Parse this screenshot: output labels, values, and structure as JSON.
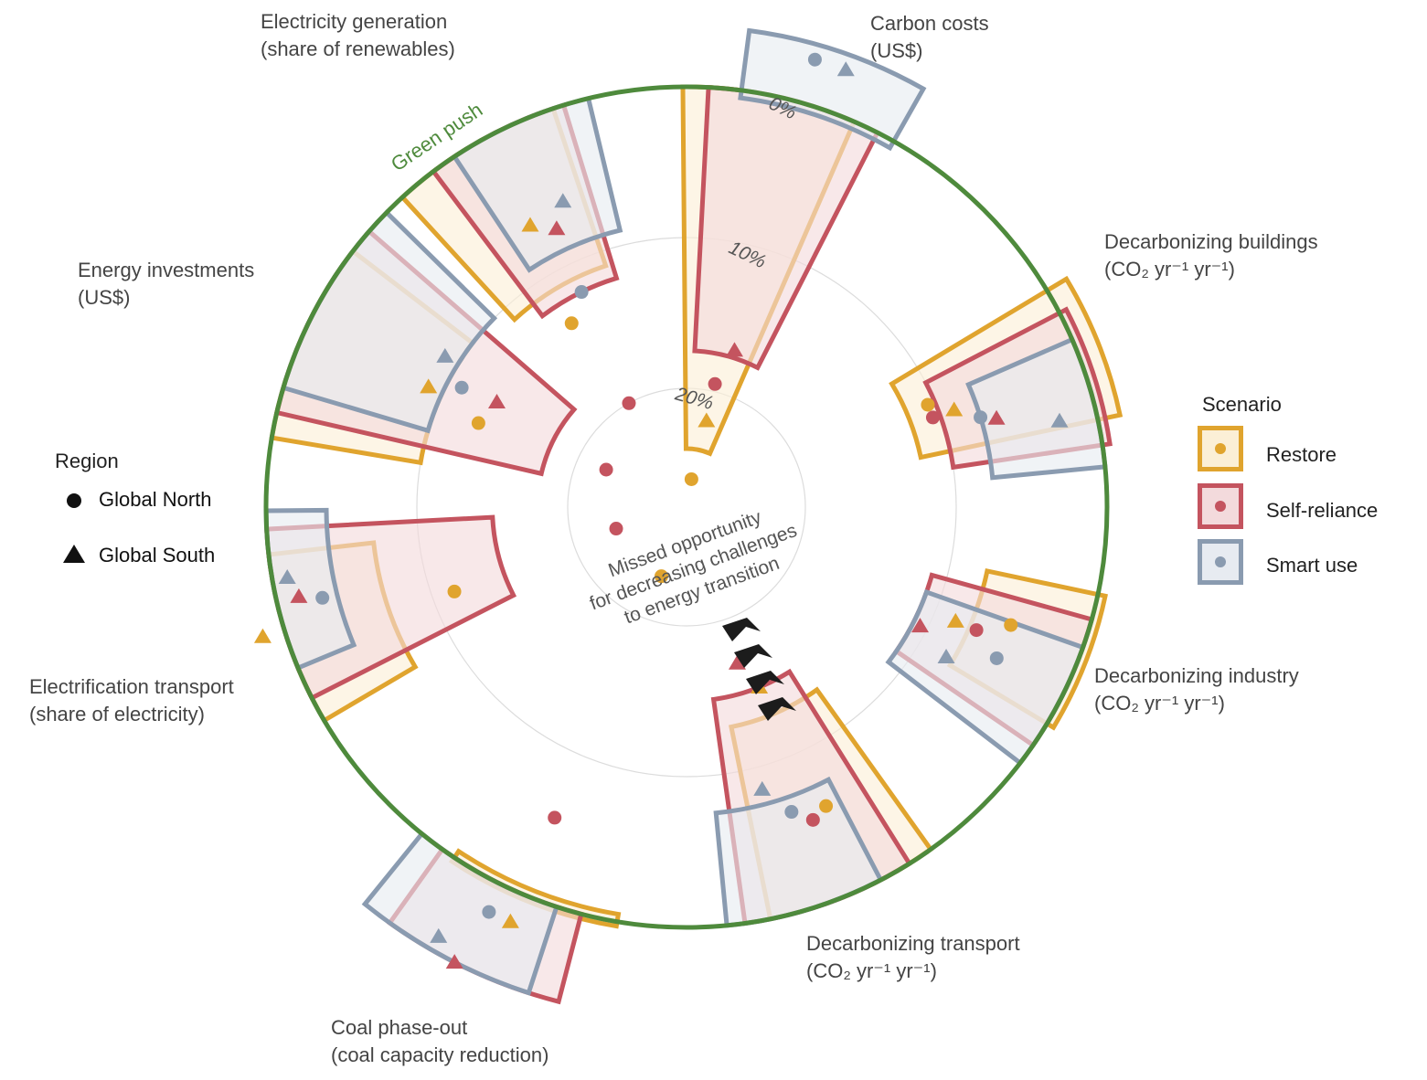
{
  "chart_data": {
    "type": "radial",
    "ring_label": "Green push",
    "center_text": [
      "Missed opportunity",
      "for decreasing challenges",
      "to energy transition"
    ],
    "percent_ring_labels": [
      "0%",
      "10%",
      "20%"
    ],
    "scenarios": [
      {
        "name": "Restore",
        "color": "#e0a42e"
      },
      {
        "name": "Self-reliance",
        "color": "#c4545f"
      },
      {
        "name": "Smart use",
        "color": "#8a9bb0"
      }
    ],
    "regions": [
      {
        "name": "Global North",
        "marker": "circle"
      },
      {
        "name": "Global South",
        "marker": "triangle"
      }
    ],
    "legend_titles": {
      "scenario": "Scenario",
      "region": "Region"
    },
    "indicators": [
      {
        "name": "Carbon costs",
        "unit": "(US$)"
      },
      {
        "name": "Decarbonizing buildings",
        "unit": "(CO₂ yr⁻¹ yr⁻¹)"
      },
      {
        "name": "Decarbonizing industry",
        "unit": "(CO₂ yr⁻¹ yr⁻¹)"
      },
      {
        "name": "Decarbonizing transport",
        "unit": "(CO₂ yr⁻¹ yr⁻¹)"
      },
      {
        "name": "Coal phase-out",
        "unit": "(coal capacity reduction)"
      },
      {
        "name": "Electrification transport",
        "unit": "(share of electricity)"
      },
      {
        "name": "Energy investments",
        "unit": "(US$)"
      },
      {
        "name": "Electricity generation",
        "unit": "(share of renewables)"
      }
    ],
    "scale": "radial axis: 0% at the outer ring, increasing inward (10%, 20%)",
    "bands_percent": {
      "Carbon costs": {
        "Restore": [
          0,
          24
        ],
        "Self-reliance": [
          0,
          17.5
        ],
        "Smart use": [
          -4,
          0.5
        ]
      },
      "Decarbonizing buildings": {
        "Restore": [
          -1.5,
          12
        ],
        "Self-reliance": [
          -0.5,
          10
        ],
        "Smart use": [
          0,
          7.5
        ]
      },
      "Decarbonizing industry": {
        "Restore": [
          -0.5,
          7.5
        ],
        "Self-reliance": [
          0,
          11
        ],
        "Smart use": [
          0,
          11
        ]
      },
      "Decarbonizing transport": {
        "Restore": [
          0,
          13
        ],
        "Self-reliance": [
          0,
          15
        ],
        "Smart use": [
          0,
          7.5
        ]
      },
      "Coal phase-out": {
        "Restore": [
          -0.3,
          0.5
        ],
        "Self-reliance": [
          -6,
          0
        ],
        "Smart use": [
          -6,
          0
        ]
      },
      "Electrification transport": {
        "Restore": [
          0,
          7
        ],
        "Self-reliance": [
          0,
          15
        ],
        "Smart use": [
          0,
          4
        ]
      },
      "Energy investments": {
        "Restore": [
          0,
          10
        ],
        "Self-reliance": [
          0,
          18
        ],
        "Smart use": [
          0,
          10
        ]
      },
      "Electricity generation": {
        "Restore": [
          0,
          11
        ],
        "Self-reliance": [
          0,
          12
        ],
        "Smart use": [
          0,
          9
        ]
      }
    },
    "markers_percent": {
      "Carbon costs": {
        "Global North": {
          "Restore": 26,
          "Self-reliance": 19.5,
          "Smart use": -3
        },
        "Global South": {
          "Restore": 22,
          "Self-reliance": 17,
          "Smart use": -3
        }
      },
      "Decarbonizing buildings": {
        "Global North": {
          "Restore": 10.5,
          "Self-reliance": 10.5,
          "Smart use": 7.5
        },
        "Global South": {
          "Restore": 9,
          "Self-reliance": 6.5,
          "Smart use": 2.5
        }
      },
      "Decarbonizing industry": {
        "Global North": {
          "Restore": 5,
          "Self-reliance": 7,
          "Smart use": 5
        },
        "Global South": {
          "Restore": 8.5,
          "Self-reliance": 10.5,
          "Smart use": 8
        }
      },
      "Decarbonizing transport": {
        "Global North": {
          "Restore": 6,
          "Self-reliance": 5.5,
          "Smart use": 6.5
        },
        "Global South": {
          "Restore": 15,
          "Self-reliance": 17,
          "Smart use": 8.5
        }
      },
      "Coal phase-out": {
        "Global North": {
          "Restore": 23,
          "Self-reliance": 5.5,
          "Smart use": -2
        },
        "Global South": {
          "Restore": -2,
          "Self-reliance": -6,
          "Smart use": -5
        }
      },
      "Electrification transport": {
        "Global North": {
          "Restore": 11.5,
          "Self-reliance": 23,
          "Smart use": 3
        },
        "Global South": {
          "Restore": -1.5,
          "Self-reliance": 1.5,
          "Smart use": 1
        }
      },
      "Energy investments": {
        "Global North": {
          "Restore": 13,
          "Self-reliance": 22,
          "Smart use": 11
        },
        "Global South": {
          "Restore": 9,
          "Self-reliance": 13.5,
          "Smart use": 9
        }
      },
      "Electricity generation": {
        "Global North": {
          "Restore": 13.5,
          "Self-reliance": 20,
          "Smart use": 12
        },
        "Global South": {
          "Restore": 6.5,
          "Self-reliance": 7.5,
          "Smart use": 6
        }
      }
    }
  }
}
